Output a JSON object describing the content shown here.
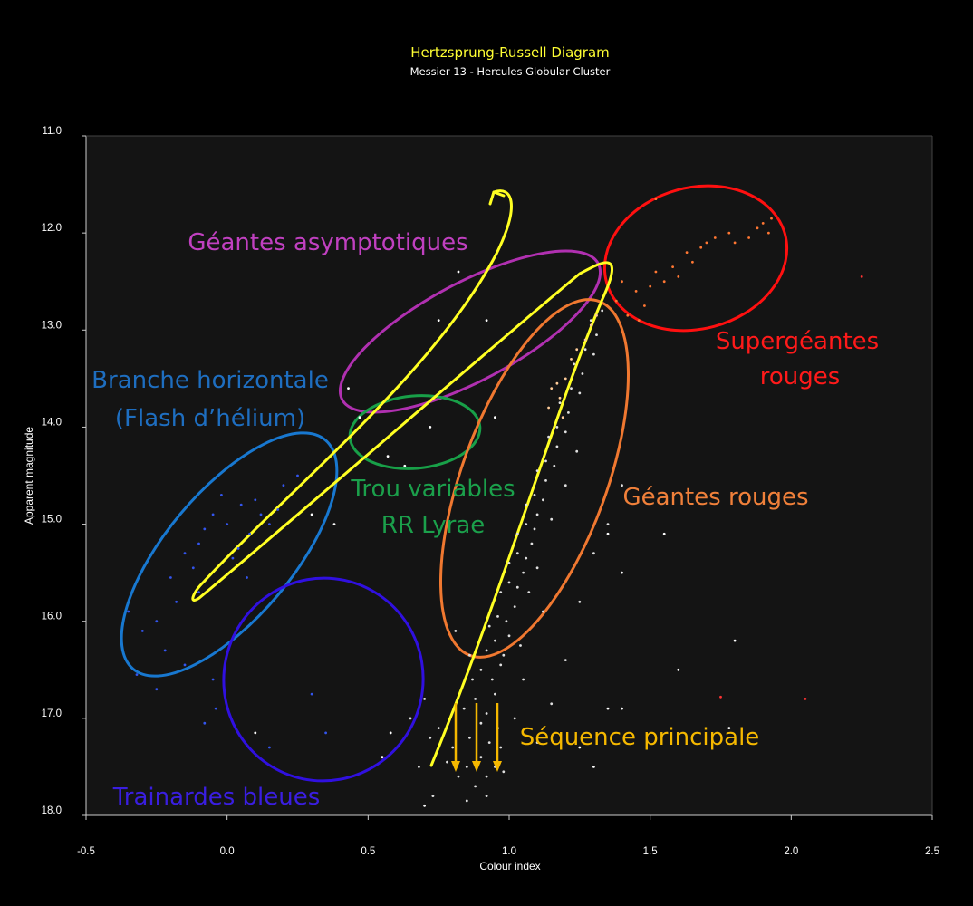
{
  "chart_data": {
    "type": "scatter",
    "title": "Hertzsprung-Russell Diagram",
    "subtitle": "Messier 13 - Hercules Globular Cluster",
    "xlabel": "Colour index",
    "ylabel": "Apparent magnitude",
    "xlim": [
      -0.5,
      2.5
    ],
    "ylim": [
      11.0,
      18.0
    ],
    "y_inverted": true,
    "x_ticks": [
      "-0.5",
      "0.0",
      "0.5",
      "1.0",
      "1.5",
      "2.0",
      "2.5"
    ],
    "y_ticks": [
      "11.0",
      "12.0",
      "13.0",
      "14.0",
      "15.0",
      "16.0",
      "17.0",
      "18.0"
    ],
    "background": "#141414",
    "grid": false,
    "series": [
      {
        "color": "#3355ee",
        "points": [
          [
            -0.05,
            14.9
          ],
          [
            0.0,
            15.0
          ],
          [
            0.05,
            14.8
          ],
          [
            -0.1,
            15.2
          ],
          [
            0.08,
            15.1
          ],
          [
            -0.02,
            14.7
          ],
          [
            0.12,
            14.9
          ],
          [
            0.15,
            15.0
          ],
          [
            -0.15,
            15.3
          ],
          [
            0.04,
            15.25
          ],
          [
            -0.08,
            15.05
          ],
          [
            0.1,
            14.75
          ],
          [
            0.18,
            14.85
          ],
          [
            -0.12,
            15.45
          ],
          [
            0.02,
            15.35
          ],
          [
            -0.2,
            15.55
          ],
          [
            -0.18,
            15.8
          ],
          [
            -0.25,
            16.0
          ],
          [
            -0.3,
            16.1
          ],
          [
            -0.22,
            16.3
          ],
          [
            -0.15,
            16.45
          ],
          [
            -0.32,
            16.55
          ],
          [
            -0.05,
            16.6
          ],
          [
            -0.1,
            15.7
          ],
          [
            0.07,
            15.55
          ],
          [
            -0.35,
            15.9
          ],
          [
            0.2,
            14.6
          ],
          [
            0.25,
            14.5
          ],
          [
            -0.04,
            16.9
          ],
          [
            -0.08,
            17.05
          ],
          [
            -0.25,
            16.7
          ],
          [
            0.3,
            16.75
          ],
          [
            0.35,
            17.15
          ],
          [
            0.15,
            17.3
          ]
        ]
      },
      {
        "color": "#e0e0e0",
        "points": [
          [
            0.82,
            17.6
          ],
          [
            0.85,
            17.5
          ],
          [
            0.88,
            17.7
          ],
          [
            0.9,
            17.4
          ],
          [
            0.92,
            17.6
          ],
          [
            0.95,
            17.5
          ],
          [
            0.97,
            17.3
          ],
          [
            0.8,
            17.3
          ],
          [
            0.78,
            17.45
          ],
          [
            0.75,
            17.1
          ],
          [
            0.72,
            17.2
          ],
          [
            0.86,
            17.2
          ],
          [
            0.9,
            17.05
          ],
          [
            0.93,
            17.25
          ],
          [
            0.96,
            17.1
          ],
          [
            0.98,
            17.55
          ],
          [
            0.84,
            16.9
          ],
          [
            0.88,
            16.8
          ],
          [
            0.92,
            16.95
          ],
          [
            0.95,
            16.75
          ],
          [
            0.87,
            16.6
          ],
          [
            0.9,
            16.5
          ],
          [
            0.94,
            16.6
          ],
          [
            0.97,
            16.45
          ],
          [
            0.92,
            16.3
          ],
          [
            0.95,
            16.2
          ],
          [
            0.98,
            16.35
          ],
          [
            1.0,
            16.15
          ],
          [
            0.93,
            16.05
          ],
          [
            0.96,
            15.95
          ],
          [
            0.99,
            16.0
          ],
          [
            1.02,
            15.85
          ],
          [
            0.97,
            15.7
          ],
          [
            1.0,
            15.6
          ],
          [
            1.03,
            15.65
          ],
          [
            1.05,
            15.5
          ],
          [
            1.0,
            15.4
          ],
          [
            1.03,
            15.3
          ],
          [
            1.06,
            15.35
          ],
          [
            1.08,
            15.2
          ],
          [
            1.03,
            15.1
          ],
          [
            1.06,
            15.0
          ],
          [
            1.09,
            15.05
          ],
          [
            1.1,
            14.9
          ],
          [
            1.06,
            14.8
          ],
          [
            1.09,
            14.7
          ],
          [
            1.12,
            14.75
          ],
          [
            1.13,
            14.55
          ],
          [
            1.1,
            14.45
          ],
          [
            1.13,
            14.35
          ],
          [
            1.16,
            14.4
          ],
          [
            1.17,
            14.2
          ],
          [
            1.14,
            14.1
          ],
          [
            1.17,
            14.0
          ],
          [
            1.2,
            14.05
          ],
          [
            1.21,
            13.85
          ],
          [
            1.18,
            13.75
          ],
          [
            1.22,
            13.6
          ],
          [
            1.25,
            13.65
          ],
          [
            1.26,
            13.45
          ],
          [
            1.23,
            13.35
          ],
          [
            1.27,
            13.2
          ],
          [
            1.3,
            13.25
          ],
          [
            1.31,
            13.05
          ],
          [
            1.29,
            12.9
          ],
          [
            1.33,
            12.8
          ],
          [
            1.07,
            15.7
          ],
          [
            1.1,
            15.45
          ],
          [
            1.12,
            15.9
          ],
          [
            1.04,
            16.25
          ],
          [
            0.86,
            16.35
          ],
          [
            0.81,
            16.1
          ],
          [
            1.15,
            14.95
          ],
          [
            1.2,
            14.6
          ],
          [
            1.24,
            14.25
          ],
          [
            1.02,
            17.0
          ],
          [
            1.05,
            16.6
          ],
          [
            0.7,
            16.8
          ],
          [
            0.68,
            17.5
          ],
          [
            0.65,
            17.0
          ],
          [
            1.1,
            17.25
          ],
          [
            1.15,
            16.85
          ],
          [
            1.2,
            16.4
          ],
          [
            1.25,
            15.8
          ],
          [
            1.3,
            15.3
          ],
          [
            1.35,
            15.0
          ],
          [
            1.4,
            14.6
          ],
          [
            0.73,
            17.8
          ],
          [
            0.85,
            17.85
          ],
          [
            0.92,
            17.8
          ]
        ]
      },
      {
        "color": "#ffffff",
        "points": [
          [
            0.43,
            13.6
          ],
          [
            0.47,
            13.9
          ],
          [
            0.57,
            14.3
          ],
          [
            0.63,
            14.4
          ],
          [
            0.72,
            14.0
          ],
          [
            0.75,
            12.9
          ],
          [
            0.82,
            12.4
          ],
          [
            0.92,
            12.9
          ],
          [
            0.95,
            13.9
          ],
          [
            0.38,
            15.0
          ],
          [
            0.3,
            14.9
          ],
          [
            0.55,
            17.4
          ],
          [
            0.7,
            17.9
          ],
          [
            0.58,
            17.15
          ],
          [
            1.25,
            17.3
          ],
          [
            1.3,
            17.5
          ],
          [
            1.35,
            16.9
          ],
          [
            1.4,
            16.9
          ],
          [
            1.55,
            15.1
          ],
          [
            1.8,
            16.2
          ],
          [
            1.78,
            17.1
          ],
          [
            1.6,
            16.5
          ],
          [
            1.4,
            15.5
          ],
          [
            1.35,
            15.1
          ],
          [
            0.1,
            17.15
          ]
        ]
      },
      {
        "color": "#ffcc99",
        "points": [
          [
            1.15,
            13.6
          ],
          [
            1.18,
            13.7
          ],
          [
            1.2,
            13.5
          ],
          [
            1.22,
            13.3
          ],
          [
            1.24,
            13.2
          ],
          [
            1.27,
            13.1
          ],
          [
            1.29,
            12.95
          ],
          [
            1.31,
            12.85
          ],
          [
            1.19,
            13.9
          ],
          [
            1.14,
            13.8
          ],
          [
            1.17,
            13.55
          ]
        ]
      },
      {
        "color": "#ff7733",
        "points": [
          [
            1.45,
            12.6
          ],
          [
            1.48,
            12.75
          ],
          [
            1.5,
            12.55
          ],
          [
            1.52,
            12.4
          ],
          [
            1.55,
            12.5
          ],
          [
            1.58,
            12.35
          ],
          [
            1.6,
            12.45
          ],
          [
            1.63,
            12.2
          ],
          [
            1.65,
            12.3
          ],
          [
            1.7,
            12.1
          ],
          [
            1.73,
            12.05
          ],
          [
            1.78,
            12.0
          ],
          [
            1.85,
            12.05
          ],
          [
            1.88,
            11.95
          ],
          [
            1.9,
            11.9
          ],
          [
            1.92,
            12.0
          ],
          [
            1.93,
            11.85
          ],
          [
            1.42,
            12.85
          ],
          [
            1.46,
            12.9
          ],
          [
            1.52,
            11.65
          ],
          [
            1.38,
            12.7
          ],
          [
            1.4,
            12.5
          ],
          [
            1.68,
            12.15
          ],
          [
            1.8,
            12.1
          ]
        ]
      },
      {
        "color": "#ff3333",
        "points": [
          [
            2.25,
            12.45
          ],
          [
            2.05,
            16.8
          ],
          [
            1.75,
            16.78
          ]
        ]
      }
    ],
    "annotations": [
      {
        "text": "Géantes asymptotiques",
        "color": "#c040c0"
      },
      {
        "text": "Branche horizontale",
        "color": "#1e6ec0"
      },
      {
        "text": "(Flash d’hélium)",
        "color": "#1e6ec0"
      },
      {
        "text": "Trou variables",
        "color": "#1ba04b"
      },
      {
        "text": "RR Lyrae",
        "color": "#1ba04b"
      },
      {
        "text": "Supergéantes",
        "color": "#ff1a1a"
      },
      {
        "text": "rouges",
        "color": "#ff1a1a"
      },
      {
        "text": "Géantes rouges",
        "color": "#f0803a"
      },
      {
        "text": "Séquence principale",
        "color": "#f5b800"
      },
      {
        "text": "Trainardes bleues",
        "color": "#3a1ee0"
      }
    ],
    "region_colors": {
      "asymptotic": "#b030b0",
      "horizontal": "#1878d0",
      "rr_lyrae": "#18a048",
      "supergiants": "#ff1010",
      "red_giants": "#f07830",
      "blue_stragglers": "#3010e0",
      "evolution_track": "#ffff22",
      "main_sequence_arrows": "#f5b800"
    }
  }
}
